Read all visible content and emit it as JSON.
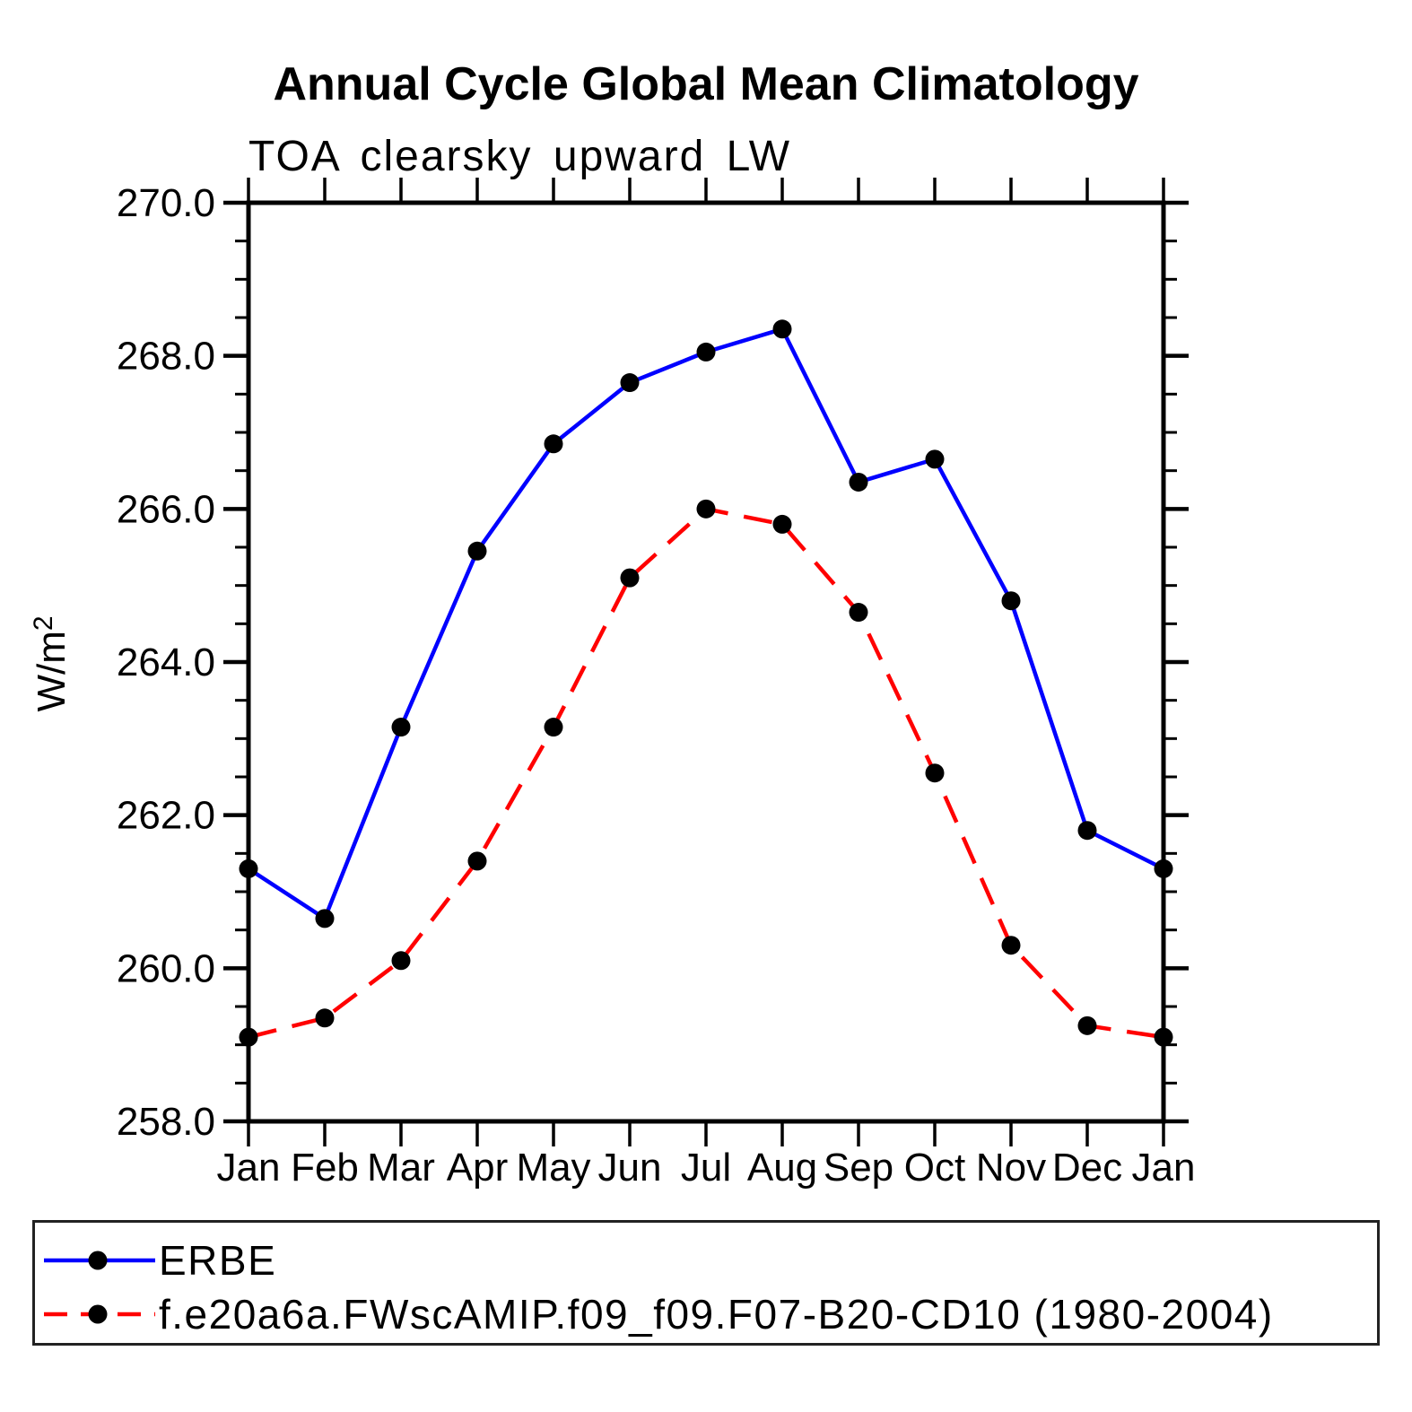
{
  "chart_data": {
    "type": "line",
    "title": "Annual Cycle Global Mean Climatology",
    "subtitle": "TOA clearsky upward LW",
    "ylabel": "W/m²",
    "xlabel": "",
    "categories": [
      "Jan",
      "Feb",
      "Mar",
      "Apr",
      "May",
      "Jun",
      "Jul",
      "Aug",
      "Sep",
      "Oct",
      "Nov",
      "Dec",
      "Jan"
    ],
    "ylim": [
      258.0,
      270.0
    ],
    "y_major_step": 2.0,
    "y_minor_step": 0.5,
    "y_tick_labels": [
      "258.0",
      "260.0",
      "262.0",
      "264.0",
      "266.0",
      "268.0",
      "270.0"
    ],
    "grid": false,
    "legend_position": "bottom",
    "marker": "filled-circle",
    "marker_color": "#000000",
    "series": [
      {
        "name": "ERBE",
        "color": "#0000ff",
        "line_style": "solid",
        "values": [
          261.3,
          260.65,
          263.15,
          265.45,
          266.85,
          267.65,
          268.05,
          268.35,
          266.35,
          266.65,
          264.8,
          261.8,
          261.3
        ]
      },
      {
        "name": "f.e20a6a.FWscAMIP.f09_f09.F07-B20-CD10 (1980-2004)",
        "color": "#ff0000",
        "line_style": "dashed",
        "values": [
          259.1,
          259.35,
          260.1,
          261.4,
          263.15,
          265.1,
          266.0,
          265.8,
          264.65,
          262.55,
          260.3,
          259.25,
          259.1
        ]
      }
    ]
  }
}
